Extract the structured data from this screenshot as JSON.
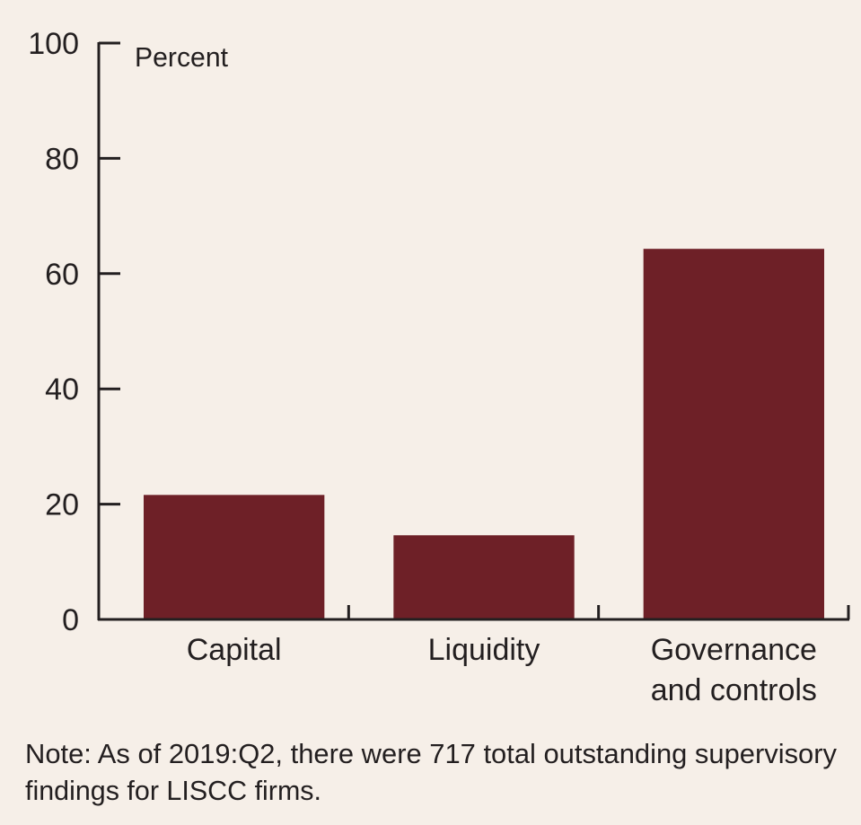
{
  "chart_data": {
    "type": "bar",
    "categories": [
      [
        "Capital"
      ],
      [
        "Liquidity"
      ],
      [
        "Governance",
        "and controls"
      ]
    ],
    "values": [
      21.6,
      14.6,
      64.3
    ],
    "ylabel": "Percent",
    "ylim": [
      0,
      100
    ],
    "yticks": [
      "0",
      "20",
      "40",
      "60",
      "80",
      "100"
    ],
    "grid": false,
    "bar_color": "#6e2027",
    "note": [
      "Note: As of 2019:Q2, there were 717 total outstanding supervisory",
      "findings for LISCC firms."
    ]
  }
}
